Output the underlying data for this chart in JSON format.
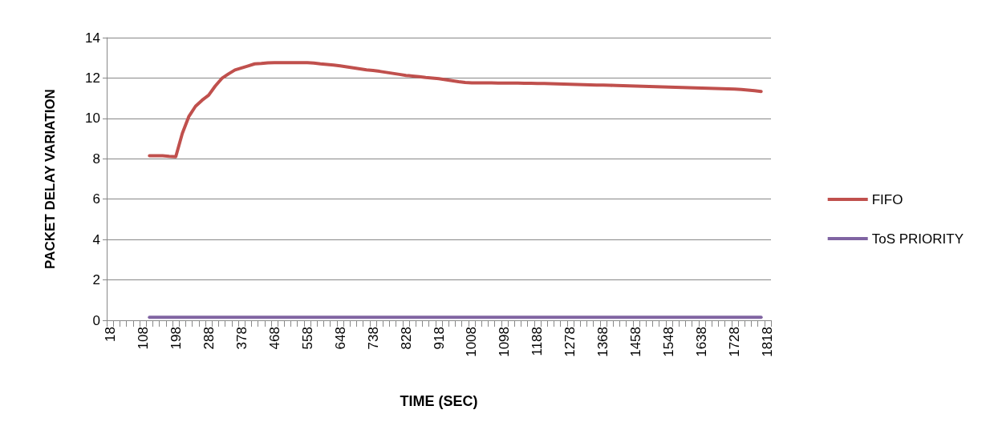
{
  "chart_data": {
    "type": "line",
    "xlabel": "TIME (SEC)",
    "ylabel": "PACKET DELAY VARIATION",
    "categories": [
      "18",
      null,
      null,
      null,
      null,
      "108",
      null,
      null,
      null,
      null,
      "198",
      null,
      null,
      null,
      null,
      "288",
      null,
      null,
      null,
      null,
      "378",
      null,
      null,
      null,
      null,
      "468",
      null,
      null,
      null,
      null,
      "558",
      null,
      null,
      null,
      null,
      "648",
      null,
      null,
      null,
      null,
      "738",
      null,
      null,
      null,
      null,
      "828",
      null,
      null,
      null,
      null,
      "918",
      null,
      null,
      null,
      null,
      "1008",
      null,
      null,
      null,
      null,
      "1098",
      null,
      null,
      null,
      null,
      "1188",
      null,
      null,
      null,
      null,
      "1278",
      null,
      null,
      null,
      null,
      "1368",
      null,
      null,
      null,
      null,
      "1458",
      null,
      null,
      null,
      null,
      "1548",
      null,
      null,
      null,
      null,
      "1638",
      null,
      null,
      null,
      null,
      "1728",
      null,
      null,
      null,
      null,
      "1818"
    ],
    "series": [
      {
        "name": "FIFO",
        "color": "#c0504d",
        "values": [
          null,
          null,
          null,
          null,
          null,
          null,
          8.15,
          8.15,
          8.15,
          8.12,
          8.1,
          9.26,
          10.1,
          10.6,
          10.9,
          11.15,
          11.6,
          11.98,
          12.2,
          12.4,
          12.5,
          12.6,
          12.7,
          12.72,
          12.75,
          12.76,
          12.76,
          12.76,
          12.76,
          12.76,
          12.76,
          12.74,
          12.7,
          12.67,
          12.64,
          12.6,
          12.55,
          12.5,
          12.45,
          12.4,
          12.37,
          12.33,
          12.28,
          12.23,
          12.18,
          12.13,
          12.1,
          12.07,
          12.03,
          12.0,
          11.97,
          11.92,
          11.87,
          11.82,
          11.78,
          11.76,
          11.76,
          11.76,
          11.76,
          11.75,
          11.75,
          11.75,
          11.75,
          11.74,
          11.74,
          11.73,
          11.73,
          11.72,
          11.71,
          11.7,
          11.69,
          11.68,
          11.67,
          11.66,
          11.65,
          11.65,
          11.64,
          11.63,
          11.62,
          11.61,
          11.6,
          11.59,
          11.58,
          11.57,
          11.56,
          11.55,
          11.54,
          11.53,
          11.52,
          11.51,
          11.5,
          11.49,
          11.48,
          11.47,
          11.46,
          11.45,
          11.43,
          11.4,
          11.37,
          11.33,
          null
        ]
      },
      {
        "name": "ToS PRIORITY",
        "color": "#8064a2",
        "values": [
          null,
          null,
          null,
          null,
          null,
          null,
          0.15,
          0.15,
          0.15,
          0.15,
          0.15,
          0.15,
          0.15,
          0.15,
          0.15,
          0.15,
          0.15,
          0.15,
          0.15,
          0.15,
          0.15,
          0.15,
          0.15,
          0.15,
          0.15,
          0.15,
          0.15,
          0.15,
          0.15,
          0.15,
          0.15,
          0.15,
          0.15,
          0.15,
          0.15,
          0.15,
          0.15,
          0.15,
          0.15,
          0.15,
          0.15,
          0.15,
          0.15,
          0.15,
          0.15,
          0.15,
          0.15,
          0.15,
          0.15,
          0.15,
          0.15,
          0.15,
          0.15,
          0.15,
          0.15,
          0.15,
          0.15,
          0.15,
          0.15,
          0.15,
          0.15,
          0.15,
          0.15,
          0.15,
          0.15,
          0.15,
          0.15,
          0.15,
          0.15,
          0.15,
          0.15,
          0.15,
          0.15,
          0.15,
          0.15,
          0.15,
          0.15,
          0.15,
          0.15,
          0.15,
          0.15,
          0.15,
          0.15,
          0.15,
          0.15,
          0.15,
          0.15,
          0.15,
          0.15,
          0.15,
          0.15,
          0.15,
          0.15,
          0.15,
          0.15,
          0.15,
          0.15,
          0.15,
          0.15,
          0.15,
          null
        ]
      }
    ],
    "ylim": [
      0,
      14
    ],
    "yticks": [
      0,
      2,
      4,
      6,
      8,
      10,
      12,
      14
    ],
    "grid": "y",
    "legend": "right",
    "marker": "none",
    "line_style": "solid"
  }
}
